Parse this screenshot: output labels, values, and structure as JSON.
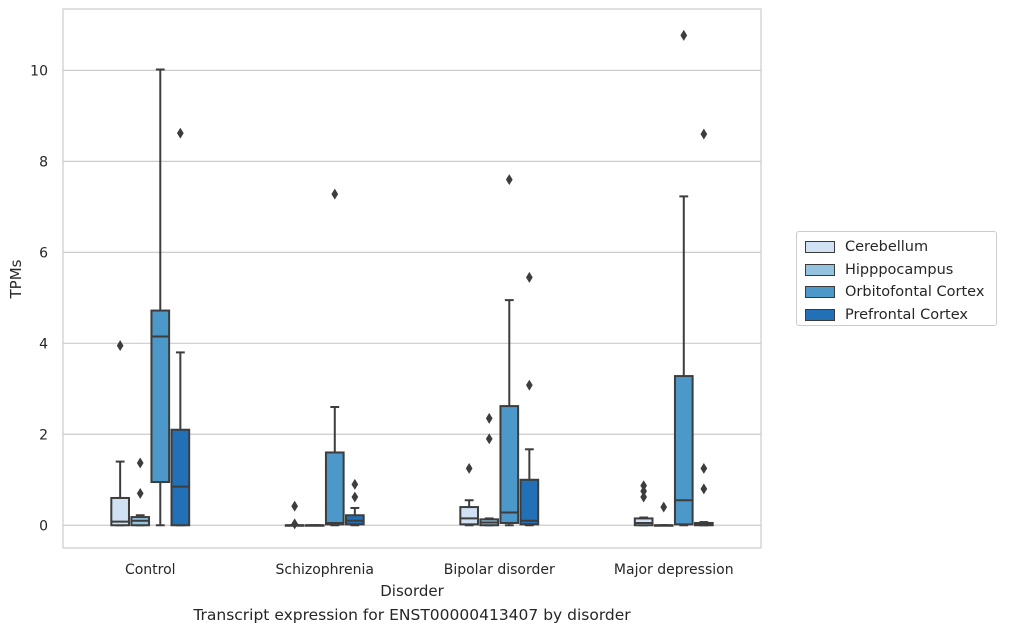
{
  "chart_data": {
    "type": "box",
    "xlabel": "Disorder",
    "ylabel": "TPMs",
    "caption": "Transcript expression for ENST00000413407 by disorder",
    "categories": [
      "Control",
      "Schizophrenia",
      "Bipolar disorder",
      "Major depression"
    ],
    "ylim": [
      -0.5,
      11.35
    ],
    "yticks": [
      0,
      2,
      4,
      6,
      8,
      10
    ],
    "grid": "horizontal",
    "legend_position": "right",
    "series": [
      {
        "name": "Cerebellum",
        "color": "#cfe1f2",
        "boxes": [
          {
            "whislo": 0.0,
            "q1": 0.0,
            "med": 0.08,
            "q3": 0.6,
            "whishi": 1.4,
            "fliers": [
              3.95
            ]
          },
          {
            "whislo": 0.0,
            "q1": 0.0,
            "med": 0.0,
            "q3": 0.0,
            "whishi": 0.0,
            "fliers": [
              0.42,
              0.03
            ]
          },
          {
            "whislo": 0.0,
            "q1": 0.02,
            "med": 0.15,
            "q3": 0.4,
            "whishi": 0.55,
            "fliers": [
              1.25
            ]
          },
          {
            "whislo": 0.0,
            "q1": 0.0,
            "med": 0.05,
            "q3": 0.15,
            "whishi": 0.17,
            "fliers": [
              0.87,
              0.75,
              0.62
            ]
          }
        ]
      },
      {
        "name": "Hipppocampus",
        "color": "#93c3df",
        "boxes": [
          {
            "whislo": 0.0,
            "q1": 0.0,
            "med": 0.1,
            "q3": 0.18,
            "whishi": 0.22,
            "fliers": [
              1.37,
              0.7
            ]
          },
          {
            "whislo": 0.0,
            "q1": 0.0,
            "med": 0.0,
            "q3": 0.0,
            "whishi": 0.0,
            "fliers": []
          },
          {
            "whislo": 0.0,
            "q1": 0.0,
            "med": 0.06,
            "q3": 0.13,
            "whishi": 0.15,
            "fliers": [
              2.35,
              1.9
            ]
          },
          {
            "whislo": 0.0,
            "q1": 0.0,
            "med": 0.0,
            "q3": 0.0,
            "whishi": 0.0,
            "fliers": [
              0.4
            ]
          }
        ]
      },
      {
        "name": "Orbitofontal Cortex",
        "color": "#4b98c9",
        "boxes": [
          {
            "whislo": 0.0,
            "q1": 0.95,
            "med": 4.15,
            "q3": 4.72,
            "whishi": 10.02,
            "fliers": []
          },
          {
            "whislo": 0.0,
            "q1": 0.02,
            "med": 0.05,
            "q3": 1.6,
            "whishi": 2.6,
            "fliers": [
              7.28
            ]
          },
          {
            "whislo": 0.0,
            "q1": 0.05,
            "med": 0.28,
            "q3": 2.62,
            "whishi": 4.95,
            "fliers": [
              7.6
            ]
          },
          {
            "whislo": 0.0,
            "q1": 0.02,
            "med": 0.55,
            "q3": 3.28,
            "whishi": 7.23,
            "fliers": [
              10.77
            ]
          }
        ]
      },
      {
        "name": "Prefrontal Cortex",
        "color": "#2270b5",
        "boxes": [
          {
            "whislo": 0.0,
            "q1": 0.0,
            "med": 0.85,
            "q3": 2.1,
            "whishi": 3.8,
            "fliers": [
              8.62
            ]
          },
          {
            "whislo": 0.0,
            "q1": 0.02,
            "med": 0.1,
            "q3": 0.22,
            "whishi": 0.38,
            "fliers": [
              0.9,
              0.62
            ]
          },
          {
            "whislo": 0.0,
            "q1": 0.02,
            "med": 0.1,
            "q3": 1.0,
            "whishi": 1.67,
            "fliers": [
              5.45,
              3.08
            ]
          },
          {
            "whislo": 0.0,
            "q1": 0.0,
            "med": 0.02,
            "q3": 0.05,
            "whishi": 0.07,
            "fliers": [
              8.6,
              1.25,
              0.8
            ]
          }
        ]
      }
    ]
  }
}
